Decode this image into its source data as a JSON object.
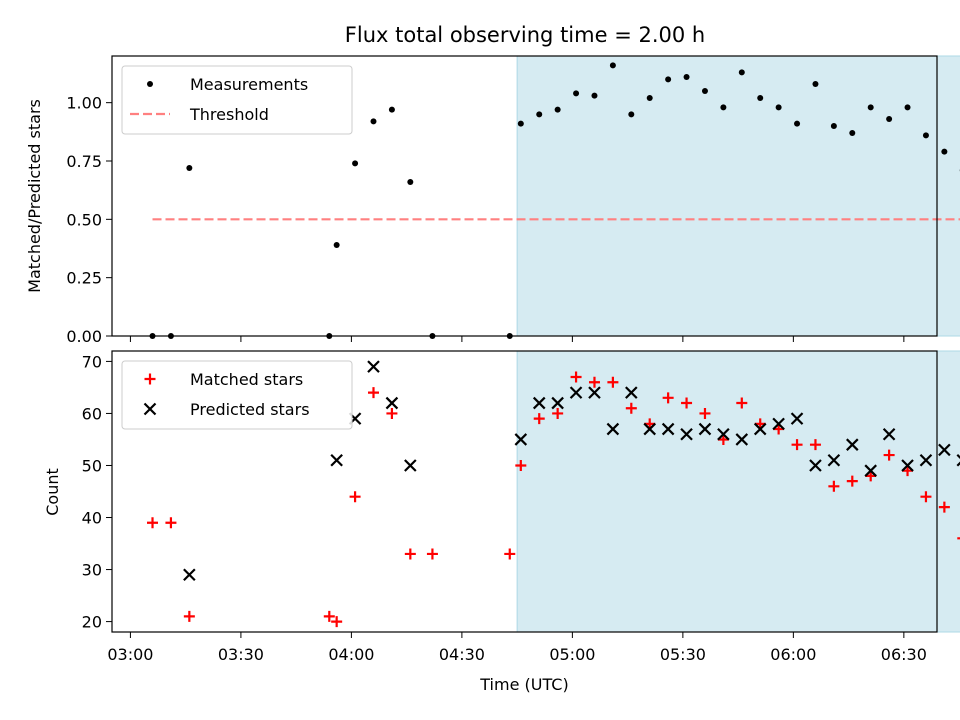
{
  "chart_data": [
    {
      "type": "scatter",
      "title": "Flux total observing time = 2.00 h",
      "xlabel": "",
      "ylabel": "Matched/Predicted stars",
      "ylim": [
        0,
        1.2
      ],
      "yticks": [
        "0.00",
        "0.25",
        "0.50",
        "0.75",
        "1.00"
      ],
      "ytick_values": [
        0,
        0.25,
        0.5,
        0.75,
        1.0
      ],
      "xlim_minutes": [
        175,
        399
      ],
      "shaded_span": {
        "start": "04:45",
        "end": "06:46",
        "color": "#add8e6"
      },
      "legend": {
        "placement": "top-left"
      },
      "series": [
        {
          "name": "Measurements",
          "marker": "dot",
          "color": "#000000",
          "points": [
            [
              "03:06",
              0.0
            ],
            [
              "03:11",
              0.0
            ],
            [
              "03:16",
              0.72
            ],
            [
              "03:54",
              0.0
            ],
            [
              "03:56",
              0.39
            ],
            [
              "04:01",
              0.74
            ],
            [
              "04:06",
              0.92
            ],
            [
              "04:11",
              0.97
            ],
            [
              "04:16",
              0.66
            ],
            [
              "04:22",
              0.0
            ],
            [
              "04:43",
              0.0
            ],
            [
              "04:46",
              0.91
            ],
            [
              "04:51",
              0.95
            ],
            [
              "04:56",
              0.97
            ],
            [
              "05:01",
              1.04
            ],
            [
              "05:06",
              1.03
            ],
            [
              "05:11",
              1.16
            ],
            [
              "05:16",
              0.95
            ],
            [
              "05:21",
              1.02
            ],
            [
              "05:26",
              1.1
            ],
            [
              "05:31",
              1.11
            ],
            [
              "05:36",
              1.05
            ],
            [
              "05:41",
              0.98
            ],
            [
              "05:46",
              1.13
            ],
            [
              "05:51",
              1.02
            ],
            [
              "05:56",
              0.98
            ],
            [
              "06:01",
              0.91
            ],
            [
              "06:06",
              1.08
            ],
            [
              "06:11",
              0.9
            ],
            [
              "06:16",
              0.87
            ],
            [
              "06:21",
              0.98
            ],
            [
              "06:26",
              0.93
            ],
            [
              "06:31",
              0.98
            ],
            [
              "06:36",
              0.86
            ],
            [
              "06:41",
              0.79
            ],
            [
              "06:46",
              0.71
            ]
          ]
        },
        {
          "name": "Threshold",
          "marker": "dashed-line",
          "color": "#ff8080",
          "points": [
            [
              "03:06",
              0.5
            ],
            [
              "06:46",
              0.5
            ]
          ]
        }
      ]
    },
    {
      "type": "scatter",
      "xlabel": "Time (UTC)",
      "ylabel": "Count",
      "ylim": [
        18,
        72
      ],
      "yticks": [
        "20",
        "30",
        "40",
        "50",
        "60",
        "70"
      ],
      "ytick_values": [
        20,
        30,
        40,
        50,
        60,
        70
      ],
      "xticks": [
        "03:00",
        "03:30",
        "04:00",
        "04:30",
        "05:00",
        "05:30",
        "06:00",
        "06:30"
      ],
      "xlim_minutes": [
        175,
        399
      ],
      "shaded_span": {
        "start": "04:45",
        "end": "06:46",
        "color": "#add8e6"
      },
      "legend": {
        "placement": "top-left"
      },
      "series": [
        {
          "name": "Matched stars",
          "marker": "plus",
          "color": "#ff0000",
          "points": [
            [
              "03:06",
              39
            ],
            [
              "03:11",
              39
            ],
            [
              "03:16",
              21
            ],
            [
              "03:54",
              21
            ],
            [
              "03:56",
              20
            ],
            [
              "04:01",
              44
            ],
            [
              "04:06",
              64
            ],
            [
              "04:11",
              60
            ],
            [
              "04:16",
              33
            ],
            [
              "04:22",
              33
            ],
            [
              "04:43",
              33
            ],
            [
              "04:46",
              50
            ],
            [
              "04:51",
              59
            ],
            [
              "04:56",
              60
            ],
            [
              "05:01",
              67
            ],
            [
              "05:06",
              66
            ],
            [
              "05:11",
              66
            ],
            [
              "05:16",
              61
            ],
            [
              "05:21",
              58
            ],
            [
              "05:26",
              63
            ],
            [
              "05:31",
              62
            ],
            [
              "05:36",
              60
            ],
            [
              "05:41",
              55
            ],
            [
              "05:46",
              62
            ],
            [
              "05:51",
              58
            ],
            [
              "05:56",
              57
            ],
            [
              "06:01",
              54
            ],
            [
              "06:06",
              54
            ],
            [
              "06:11",
              46
            ],
            [
              "06:16",
              47
            ],
            [
              "06:21",
              48
            ],
            [
              "06:26",
              52
            ],
            [
              "06:31",
              49
            ],
            [
              "06:36",
              44
            ],
            [
              "06:41",
              42
            ],
            [
              "06:46",
              36
            ]
          ]
        },
        {
          "name": "Predicted stars",
          "marker": "x",
          "color": "#000000",
          "points": [
            [
              "03:16",
              29
            ],
            [
              "03:56",
              51
            ],
            [
              "04:01",
              59
            ],
            [
              "04:06",
              69
            ],
            [
              "04:11",
              62
            ],
            [
              "04:16",
              50
            ],
            [
              "04:46",
              55
            ],
            [
              "04:51",
              62
            ],
            [
              "04:56",
              62
            ],
            [
              "05:01",
              64
            ],
            [
              "05:06",
              64
            ],
            [
              "05:11",
              57
            ],
            [
              "05:16",
              64
            ],
            [
              "05:21",
              57
            ],
            [
              "05:26",
              57
            ],
            [
              "05:31",
              56
            ],
            [
              "05:36",
              57
            ],
            [
              "05:41",
              56
            ],
            [
              "05:46",
              55
            ],
            [
              "05:51",
              57
            ],
            [
              "05:56",
              58
            ],
            [
              "06:01",
              59
            ],
            [
              "06:06",
              50
            ],
            [
              "06:11",
              51
            ],
            [
              "06:16",
              54
            ],
            [
              "06:21",
              49
            ],
            [
              "06:26",
              56
            ],
            [
              "06:31",
              50
            ],
            [
              "06:36",
              51
            ],
            [
              "06:41",
              53
            ],
            [
              "06:46",
              51
            ]
          ]
        }
      ]
    }
  ]
}
